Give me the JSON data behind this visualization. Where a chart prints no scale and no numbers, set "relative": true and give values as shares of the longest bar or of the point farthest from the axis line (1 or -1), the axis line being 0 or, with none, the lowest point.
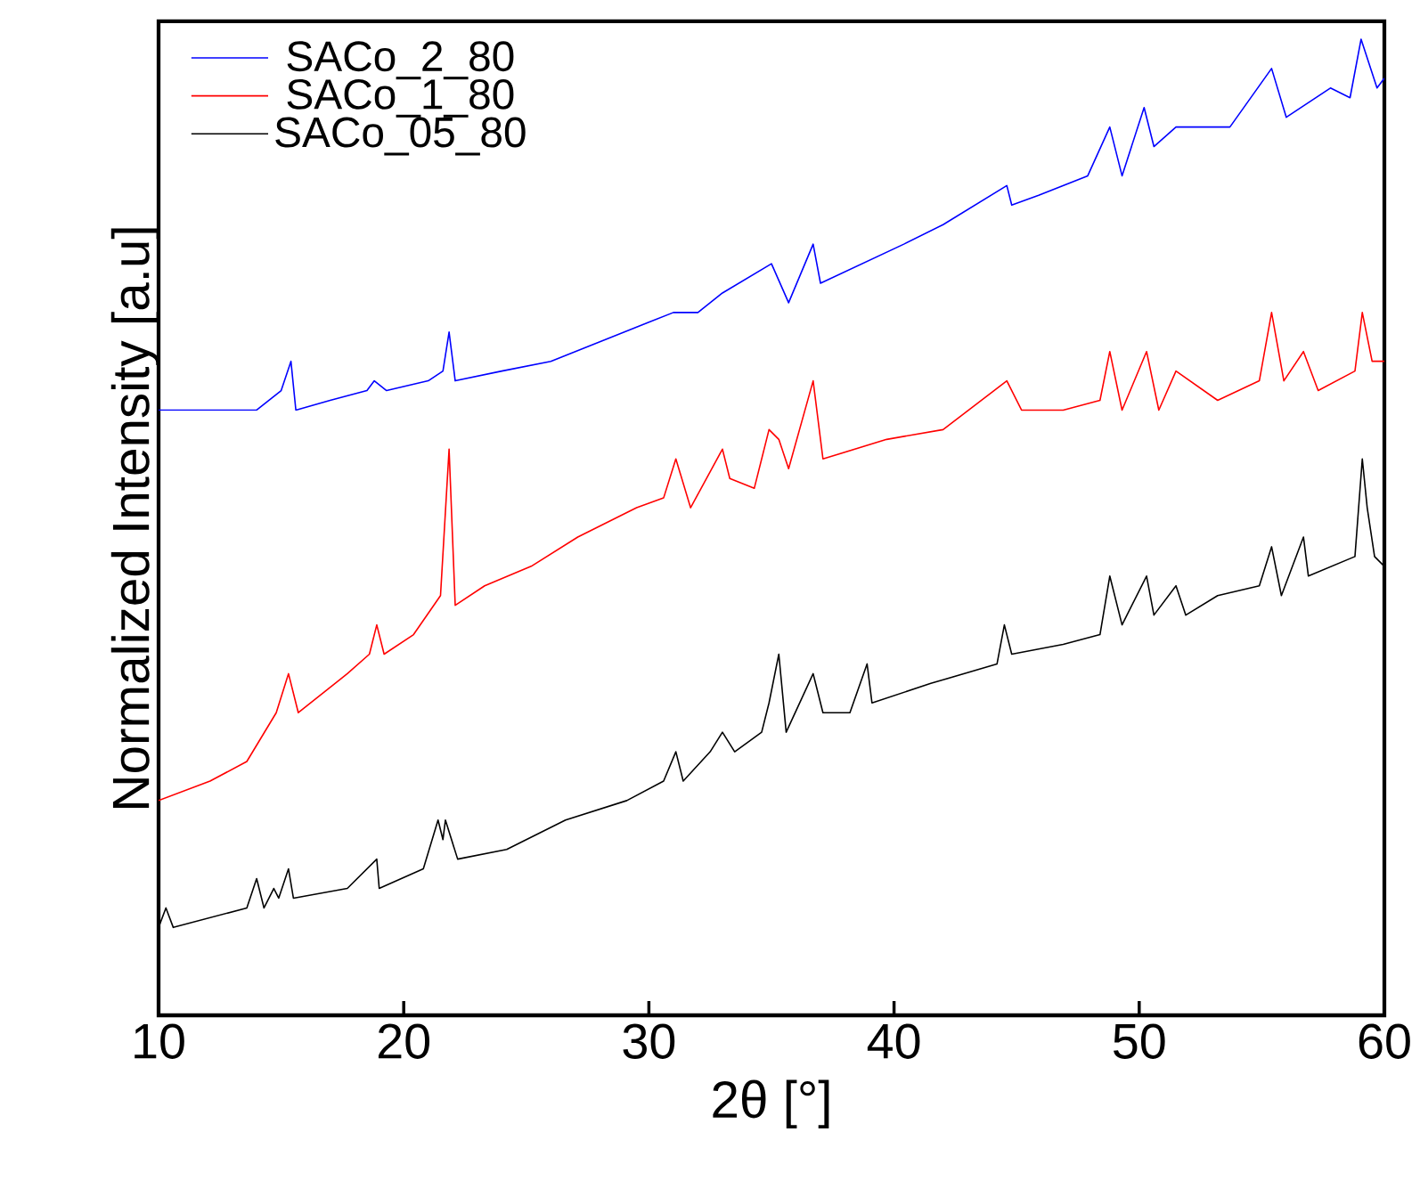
{
  "chart_data": {
    "type": "line",
    "xlabel": "2θ [°]",
    "ylabel": "Normalized Intensity [a.u]",
    "relative": true,
    "xlim": [
      10,
      60
    ],
    "xticks": [
      10,
      20,
      30,
      40,
      50,
      60
    ],
    "legend": "top left",
    "series": [
      {
        "name": "SACo_2_80",
        "color": "#0000ff",
        "x": [
          10,
          12,
          14,
          15,
          15.4,
          15.6,
          17,
          18.5,
          18.8,
          19.3,
          21,
          21.6,
          21.85,
          22.1,
          24,
          26,
          28,
          30,
          31,
          32,
          33,
          35,
          35.7,
          36.7,
          37,
          40.4,
          42,
          44.6,
          44.8,
          45.9,
          47.9,
          48.8,
          49.3,
          50.2,
          50.6,
          51.5,
          53.7,
          55.4,
          56,
          57.8,
          58.6,
          59.05,
          59.7,
          60
        ],
        "values": [
          0.62,
          0.62,
          0.62,
          0.64,
          0.67,
          0.62,
          0.63,
          0.64,
          0.65,
          0.64,
          0.65,
          0.66,
          0.7,
          0.65,
          0.66,
          0.67,
          0.69,
          0.71,
          0.72,
          0.72,
          0.74,
          0.77,
          0.73,
          0.79,
          0.75,
          0.79,
          0.81,
          0.85,
          0.83,
          0.84,
          0.86,
          0.91,
          0.86,
          0.93,
          0.89,
          0.91,
          0.91,
          0.97,
          0.92,
          0.95,
          0.94,
          1.0,
          0.95,
          0.96
        ]
      },
      {
        "name": "SACo_1_80",
        "color": "#ff0000",
        "x": [
          10,
          12.1,
          13.6,
          14.8,
          15.3,
          15.7,
          17.7,
          18.6,
          18.9,
          19.2,
          20.4,
          21.5,
          21.85,
          22.1,
          23.3,
          25.2,
          27.1,
          29.5,
          30.6,
          31.1,
          31.7,
          33,
          33.3,
          34.3,
          34.9,
          35.3,
          35.7,
          36.7,
          37.1,
          39.7,
          42,
          44.6,
          45.2,
          46.9,
          48.4,
          48.8,
          49.3,
          50.3,
          50.8,
          51.5,
          53.2,
          54.9,
          55.4,
          55.9,
          56.7,
          57.3,
          58.8,
          59.1,
          59.5,
          60
        ],
        "values": [
          0.22,
          0.24,
          0.26,
          0.31,
          0.35,
          0.31,
          0.35,
          0.37,
          0.4,
          0.37,
          0.39,
          0.43,
          0.58,
          0.42,
          0.44,
          0.46,
          0.49,
          0.52,
          0.53,
          0.57,
          0.52,
          0.58,
          0.55,
          0.54,
          0.6,
          0.59,
          0.56,
          0.65,
          0.57,
          0.59,
          0.6,
          0.65,
          0.62,
          0.62,
          0.63,
          0.68,
          0.62,
          0.68,
          0.62,
          0.66,
          0.63,
          0.65,
          0.72,
          0.65,
          0.68,
          0.64,
          0.66,
          0.72,
          0.67,
          0.67
        ]
      },
      {
        "name": "SACo_05_80",
        "color": "#000000",
        "x": [
          10,
          10.3,
          10.6,
          12.1,
          13.6,
          14,
          14.3,
          14.7,
          14.9,
          15.3,
          15.5,
          17.7,
          18.9,
          19,
          20.8,
          21.4,
          21.6,
          21.7,
          22.2,
          24.2,
          26.6,
          29.1,
          30.6,
          31.1,
          31.4,
          32.5,
          33,
          33.5,
          34.6,
          34.9,
          35.3,
          35.6,
          36.7,
          37.1,
          38.2,
          38.9,
          39.1,
          41.5,
          44.2,
          44.5,
          44.8,
          46.9,
          48.4,
          48.8,
          49.3,
          50.3,
          50.6,
          51.5,
          51.9,
          53.2,
          54.9,
          55.4,
          55.8,
          56.7,
          56.9,
          58.8,
          59.1,
          59.3,
          59.6,
          60
        ],
        "values": [
          0.09,
          0.11,
          0.09,
          0.1,
          0.11,
          0.14,
          0.11,
          0.13,
          0.12,
          0.15,
          0.12,
          0.13,
          0.16,
          0.13,
          0.15,
          0.2,
          0.18,
          0.2,
          0.16,
          0.17,
          0.2,
          0.22,
          0.24,
          0.27,
          0.24,
          0.27,
          0.29,
          0.27,
          0.29,
          0.32,
          0.37,
          0.29,
          0.35,
          0.31,
          0.31,
          0.36,
          0.32,
          0.34,
          0.36,
          0.4,
          0.37,
          0.38,
          0.39,
          0.45,
          0.4,
          0.45,
          0.41,
          0.44,
          0.41,
          0.43,
          0.44,
          0.48,
          0.43,
          0.49,
          0.45,
          0.47,
          0.57,
          0.52,
          0.47,
          0.46
        ]
      }
    ]
  }
}
